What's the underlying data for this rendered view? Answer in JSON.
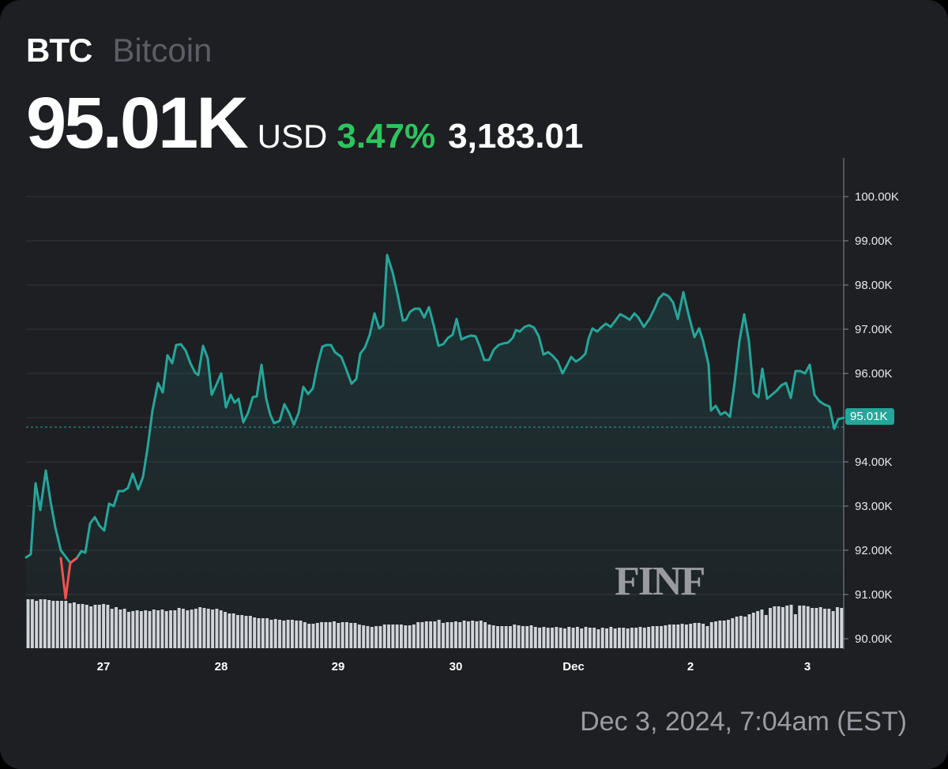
{
  "header": {
    "ticker": "BTC",
    "name": "Bitcoin",
    "price": "95.01K",
    "currency": "USD",
    "change_pct": "3.47%",
    "change_abs": "3,183.01"
  },
  "colors": {
    "background": "#1d1f23",
    "line_up": "#26a69a",
    "line_down": "#ef5350",
    "change_positive": "#2ec45e",
    "volume": "#d6d6dc"
  },
  "current_price_label": "95.01K",
  "watermark": "FINF",
  "timestamp": "Dec 3, 2024, 7:04am (EST)",
  "chart_data": {
    "type": "line",
    "title": "BTC Bitcoin",
    "xlabel": "",
    "ylabel": "USD",
    "ylim": [
      90000,
      100800
    ],
    "y_ticks": [
      "100.00K",
      "99.00K",
      "98.00K",
      "97.00K",
      "96.00K",
      "95.00K",
      "94.00K",
      "93.00K",
      "92.00K",
      "91.00K",
      "90.00K"
    ],
    "x_ticks": [
      "27",
      "28",
      "29",
      "30",
      "Dec",
      "2",
      "3"
    ],
    "grid": true,
    "current_price": 95010,
    "reference_line": 94800,
    "series": [
      {
        "name": "BTC/USD",
        "x": [
          "Nov 26 08:00",
          "Nov 26 12:00",
          "Nov 26 16:00",
          "Nov 26 20:00",
          "Nov 27 00:00",
          "Nov 27 04:00",
          "Nov 27 08:00",
          "Nov 27 12:00",
          "Nov 27 16:00",
          "Nov 27 20:00",
          "Nov 28 00:00",
          "Nov 28 04:00",
          "Nov 28 08:00",
          "Nov 28 12:00",
          "Nov 28 16:00",
          "Nov 28 20:00",
          "Nov 29 00:00",
          "Nov 29 04:00",
          "Nov 29 08:00",
          "Nov 29 12:00",
          "Nov 29 16:00",
          "Nov 29 20:00",
          "Nov 30 00:00",
          "Nov 30 04:00",
          "Nov 30 08:00",
          "Nov 30 12:00",
          "Nov 30 16:00",
          "Nov 30 20:00",
          "Dec 1 00:00",
          "Dec 1 04:00",
          "Dec 1 08:00",
          "Dec 1 12:00",
          "Dec 1 16:00",
          "Dec 1 20:00",
          "Dec 2 00:00",
          "Dec 2 04:00",
          "Dec 2 08:00",
          "Dec 2 12:00",
          "Dec 2 16:00",
          "Dec 2 20:00",
          "Dec 3 00:00",
          "Dec 3 04:00",
          "Dec 3 07:04"
        ],
        "values": [
          91850,
          93800,
          92000,
          91000,
          92000,
          92700,
          93400,
          93600,
          95800,
          96700,
          96400,
          95500,
          95300,
          95500,
          96200,
          94900,
          95200,
          95600,
          96700,
          96300,
          97100,
          98700,
          97400,
          97500,
          96600,
          97200,
          96700,
          96700,
          97000,
          96900,
          96100,
          96400,
          97100,
          97300,
          97400,
          97900,
          96500,
          95200,
          97400,
          95500,
          95800,
          96200,
          95010
        ]
      }
    ]
  }
}
